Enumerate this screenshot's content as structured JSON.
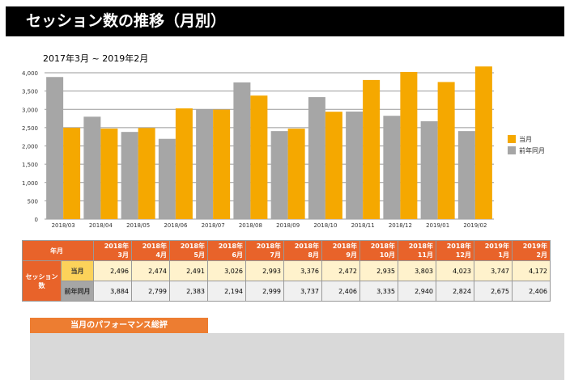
{
  "title": "セッション数の推移（月別）",
  "chart_data": {
    "type": "bar",
    "title": "2017年3月 ~ 2019年2月",
    "categories": [
      "2018/03",
      "2018/04",
      "2018/05",
      "2018/06",
      "2018/07",
      "2018/08",
      "2018/09",
      "2018/10",
      "2018/11",
      "2018/12",
      "2019/01",
      "2019/02"
    ],
    "series": [
      {
        "name": "前年同月",
        "color": "#a6a6a6",
        "values": [
          3884,
          2799,
          2383,
          2194,
          2999,
          3737,
          2406,
          3335,
          2940,
          2824,
          2675,
          2406
        ]
      },
      {
        "name": "当月",
        "color": "#f5a800",
        "values": [
          2496,
          2474,
          2491,
          3026,
          2993,
          3376,
          2472,
          2935,
          3803,
          4023,
          3747,
          4172
        ]
      }
    ],
    "ylim": [
      0,
      4000
    ],
    "yticks": [
      "0",
      "500",
      "1,000",
      "1,500",
      "2,000",
      "2,500",
      "3,000",
      "3,500",
      "4,000"
    ],
    "grid": true,
    "legend": "right",
    "legend_entries": [
      "当月",
      "前年同月"
    ]
  },
  "table": {
    "header_label": "年月",
    "row_group": "セッション数",
    "row1_label": "当月",
    "row2_label": "前年同月",
    "columns": [
      [
        "2018年",
        "3月"
      ],
      [
        "2018年",
        "4月"
      ],
      [
        "2018年",
        "5月"
      ],
      [
        "2018年",
        "6月"
      ],
      [
        "2018年",
        "7月"
      ],
      [
        "2018年",
        "8月"
      ],
      [
        "2018年",
        "9月"
      ],
      [
        "2018年",
        "10月"
      ],
      [
        "2018年",
        "11月"
      ],
      [
        "2018年",
        "12月"
      ],
      [
        "2019年",
        "1月"
      ],
      [
        "2019年",
        "2月"
      ]
    ],
    "row1": [
      "2,496",
      "2,474",
      "2,491",
      "3,026",
      "2,993",
      "3,376",
      "2,472",
      "2,935",
      "3,803",
      "4,023",
      "3,747",
      "4,172"
    ],
    "row2": [
      "3,884",
      "2,799",
      "2,383",
      "2,194",
      "2,999",
      "3,737",
      "2,406",
      "3,335",
      "2,940",
      "2,824",
      "2,675",
      "2,406"
    ]
  },
  "performance_label": "当月のパフォーマンス総評"
}
